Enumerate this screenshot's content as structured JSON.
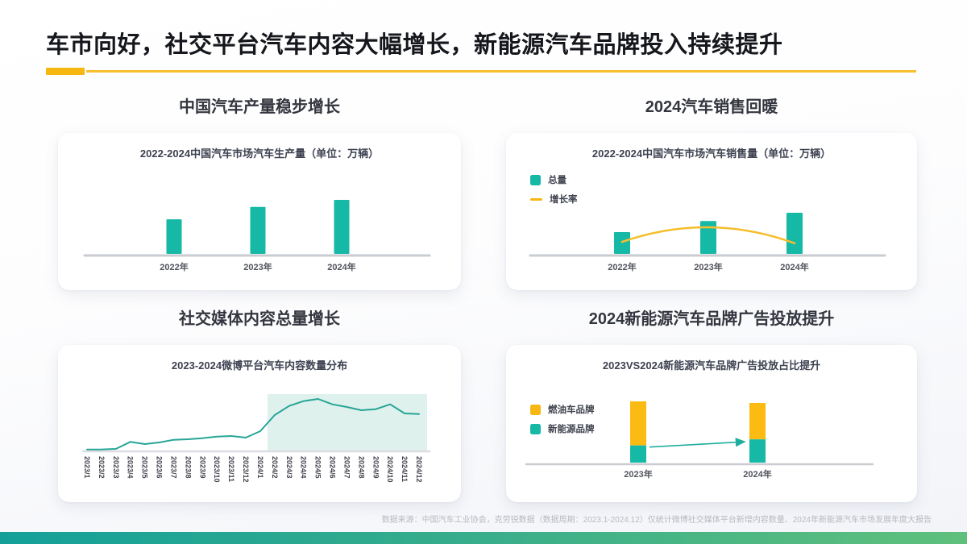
{
  "header": {
    "title": "车市向好，社交平台汽车内容大幅增长，新能源汽车品牌投入持续提升"
  },
  "colors": {
    "teal": "#16B8A6",
    "yellow": "#F7B711",
    "axis_gray": "#C9CCD0",
    "highlight": "#DFF1ED",
    "arrow": "#1FAE9D",
    "bar_gradient_left": "#14A099",
    "bar_gradient_right": "#5FC07C"
  },
  "panels": {
    "production": {
      "section_title": "中国汽车产量稳步增长"
    },
    "sales": {
      "section_title": "2024汽车销售回暖"
    },
    "weibo": {
      "section_title": "社交媒体内容总量增长"
    },
    "ads": {
      "section_title": "2024新能源汽车品牌广告投放提升"
    }
  },
  "chart_data": [
    {
      "id": "production",
      "type": "bar",
      "title": "2022-2024中国汽车市场汽车生产量（单位：万辆）",
      "categories": [
        "2022年",
        "2023年",
        "2024年"
      ],
      "values": [
        64,
        87,
        100
      ],
      "value_scale": "relative index estimated from bar heights; no numeric labels shown in chart",
      "bar_color": "#16B8A6",
      "grid": false
    },
    {
      "id": "sales",
      "type": "bar+line",
      "title": "2022-2024中国汽车市场汽车销售量（单位：万辆）",
      "categories": [
        "2022年",
        "2023年",
        "2024年"
      ],
      "series": [
        {
          "name": "总量",
          "type": "bar",
          "values": [
            53,
            80,
            100
          ],
          "color": "#16B8A6"
        },
        {
          "name": "增长率",
          "type": "line",
          "values": [
            27,
            60,
            24
          ],
          "color": "#F6BE2C",
          "shape": "smooth arc peaking near 2023"
        }
      ],
      "legend_position": "top-left",
      "value_scale": "relative index estimated; no numeric labels shown in chart",
      "grid": false
    },
    {
      "id": "weibo",
      "type": "line",
      "title": "2023-2024微博平台汽车内容数量分布",
      "categories": [
        "2023/1",
        "2023/2",
        "2023/3",
        "2023/4",
        "2023/5",
        "2023/6",
        "2023/7",
        "2023/8",
        "2023/9",
        "2023/10",
        "2023/11",
        "2023/12",
        "2024/1",
        "2024/2",
        "2024/3",
        "2024/4",
        "2024/5",
        "2024/6",
        "2024/7",
        "2024/8",
        "2024/9",
        "2024/10",
        "2024/11",
        "2024/12"
      ],
      "values": [
        2,
        2,
        3,
        16,
        12,
        15,
        20,
        21,
        23,
        26,
        27,
        24,
        36,
        66,
        83,
        92,
        96,
        86,
        81,
        75,
        77,
        86,
        69,
        68
      ],
      "highlight_region": {
        "from": "2024/2",
        "to": "2024/12",
        "color": "#DFF1ED"
      },
      "line_color": "#27A596",
      "value_scale": "relative index estimated; no numeric axis shown in chart",
      "grid": false
    },
    {
      "id": "ads",
      "type": "stacked-bar",
      "title": "2023VS2024新能源汽车品牌广告投放占比提升",
      "categories": [
        "2023年",
        "2024年"
      ],
      "series": [
        {
          "name": "燃油车品牌",
          "values": [
            72,
            61
          ],
          "color": "#FBBB12"
        },
        {
          "name": "新能源品牌",
          "values": [
            28,
            39
          ],
          "color": "#16B8A6"
        }
      ],
      "totals_relative": [
        100,
        97
      ],
      "annotation_arrow": {
        "from": "2023年新能源段顶部",
        "to": "2024年新能源段顶部",
        "color": "#1FAE9D"
      },
      "value_scale": "percent share estimated; no numeric labels shown in chart",
      "grid": false
    }
  ],
  "footer": {
    "source": "数据来源：中国汽车工业协会，克劳锐数据（数据周期：2023.1-2024.12）仅统计微博社交媒体平台新增内容数量、2024年新能源汽车市场发展年度大报告"
  }
}
